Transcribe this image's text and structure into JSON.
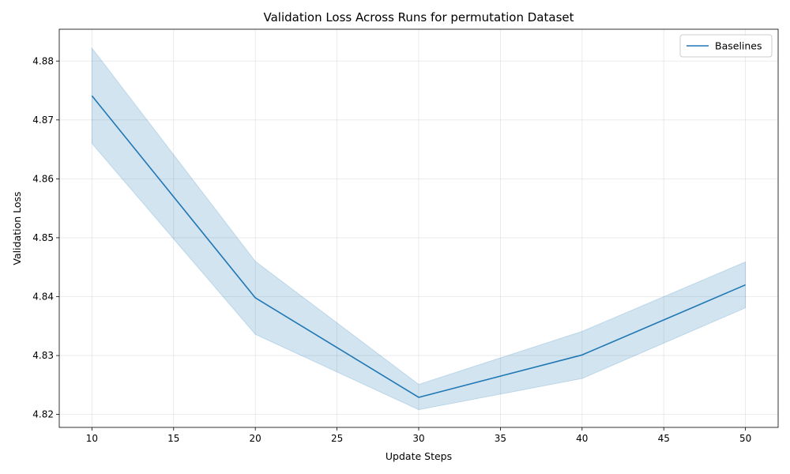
{
  "chart_data": {
    "type": "line",
    "title": "Validation Loss Across Runs for permutation Dataset",
    "xlabel": "Update Steps",
    "ylabel": "Validation Loss",
    "xlim": [
      8,
      52
    ],
    "ylim": [
      4.8178,
      4.8854
    ],
    "xticks": [
      10,
      15,
      20,
      25,
      30,
      35,
      40,
      45,
      50
    ],
    "yticks": [
      4.82,
      4.83,
      4.84,
      4.85,
      4.86,
      4.87,
      4.88
    ],
    "ytick_labels": [
      "4.82",
      "4.83",
      "4.84",
      "4.85",
      "4.86",
      "4.87",
      "4.88"
    ],
    "grid": true,
    "legend_position": "top-right",
    "series": [
      {
        "name": "Baselines",
        "color": "#1f77b4",
        "x": [
          10,
          20,
          30,
          40,
          50
        ],
        "y": [
          4.8741,
          4.8398,
          4.8229,
          4.8301,
          4.842
        ],
        "lower": [
          4.866,
          4.8336,
          4.8208,
          4.8261,
          4.8381
        ],
        "upper": [
          4.8822,
          4.846,
          4.8251,
          4.8341,
          4.8459
        ]
      }
    ]
  }
}
